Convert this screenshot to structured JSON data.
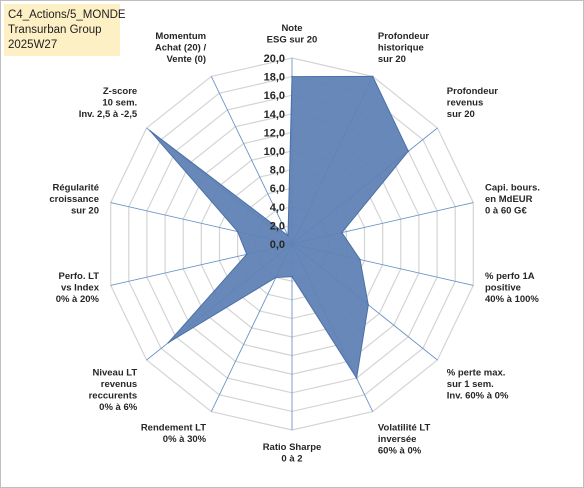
{
  "header": {
    "line1": "C4_Actions/5_MONDE",
    "line2": "Transurban Group",
    "line3": "2025W27"
  },
  "chart_data": {
    "type": "radar",
    "rmax": 20,
    "ticks": [
      "0,0",
      "2,0",
      "4,0",
      "6,0",
      "8,0",
      "10,0",
      "12,0",
      "14,0",
      "16,0",
      "18,0",
      "20,0"
    ],
    "colors": {
      "fill": "#5f82b5",
      "stroke": "#4a70a8",
      "grid": "#d4d4d4",
      "spoke": "#6e95c8"
    },
    "axes": [
      {
        "label": [
          "Note",
          "ESG sur 20"
        ],
        "value": 18
      },
      {
        "label": [
          "Profondeur",
          "historique",
          "sur 20"
        ],
        "value": 20
      },
      {
        "label": [
          "Profondeur",
          "revenus",
          "sur 20"
        ],
        "value": 16
      },
      {
        "label": [
          "Capi. bours.",
          "en MdEUR",
          "0 à 60 G€"
        ],
        "value": 5.5
      },
      {
        "label": [
          "% perfo 1A",
          "positive",
          "40% à 100%"
        ],
        "value": 7.5
      },
      {
        "label": [
          "% perte max.",
          "sur 1 sem.",
          "Inv. 60% à 0%"
        ],
        "value": 10.5
      },
      {
        "label": [
          "Volatilité LT",
          "inversée",
          "60% à 0%"
        ],
        "value": 16
      },
      {
        "label": [
          "Ratio Sharpe",
          "0 à 2"
        ],
        "value": 3.5
      },
      {
        "label": [
          "Rendement LT",
          "0% à 30%"
        ],
        "value": 4
      },
      {
        "label": [
          "Niveau LT",
          "revenus",
          "reccurents",
          "0% à 6%"
        ],
        "value": 17
      },
      {
        "label": [
          "Perfo. LT",
          "vs Index",
          "0% à 20%"
        ],
        "value": 5
      },
      {
        "label": [
          "Régularité",
          "croissance",
          "sur 20"
        ],
        "value": 6
      },
      {
        "label": [
          "Z-score",
          "10 sem.",
          "Inv. 2,5 à -2,5"
        ],
        "value": 19.5
      },
      {
        "label": [
          "Momentum",
          "Achat (20) /",
          "Vente (0)"
        ],
        "value": 1
      }
    ]
  }
}
